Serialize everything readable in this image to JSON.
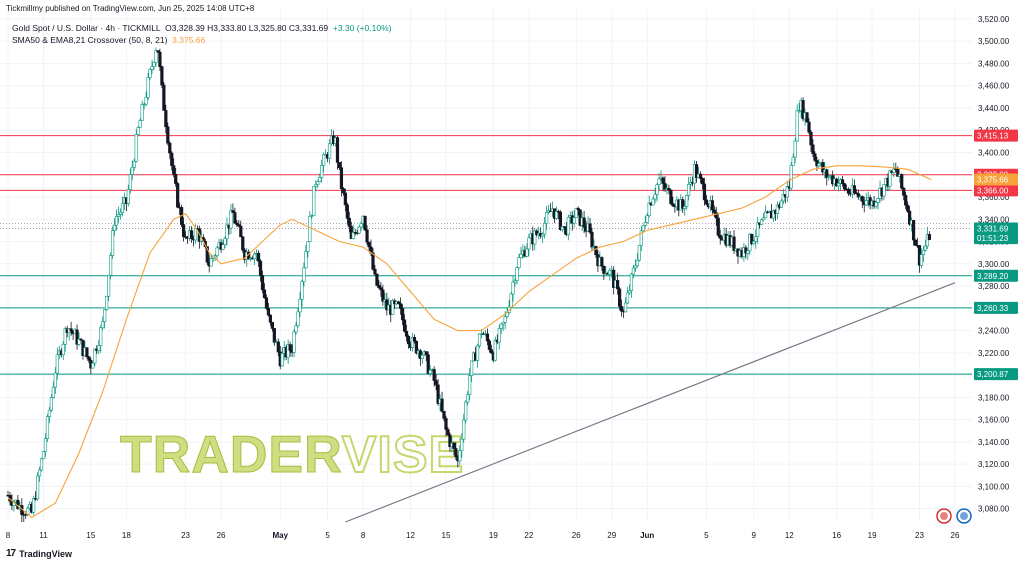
{
  "header": {
    "publisher": "Tickmillmy published on TradingView.com, Jun 25, 2025 14:08 UTC+8",
    "symbol": "Gold Spot / U.S. Dollar · 4h · TICKMILL",
    "ohlc": "O3,328.39  H3,333.80  L3,325.80  C3,331.69",
    "change": "+3.30 (+0.10%)",
    "indicator_name": "SMA50 & EMA8,21 Crossover (50, 8, 21)",
    "indicator_value": "3,375.66"
  },
  "footer": {
    "logo_text": "TradingView",
    "logo_icon": "tradingview-logo-icon"
  },
  "watermark": {
    "text_a": "TRADER",
    "text_b": "VISE"
  },
  "chart_data": {
    "type": "candlestick",
    "title": "Gold Spot / U.S. Dollar · 4h · TICKMILL",
    "y_axis": {
      "range": [
        3068,
        3528
      ],
      "ticks": [
        3080,
        3100,
        3120,
        3140,
        3160,
        3180,
        3200,
        3220,
        3240,
        3260,
        3280,
        3300,
        3320,
        3340,
        3360,
        3380,
        3400,
        3420,
        3440,
        3460,
        3480,
        3500,
        3520
      ],
      "tick_labels": [
        "3,080.00",
        "3,100.00",
        "3,120.00",
        "3,140.00",
        "3,160.00",
        "3,180.00",
        "3,200.00",
        "3,220.00",
        "3,240.00",
        "3,260.00",
        "3,280.00",
        "3,300.00",
        "3,320.00",
        "3,340.00",
        "3,360.00",
        "3,380.00",
        "3,400.00",
        "3,420.00",
        "3,440.00",
        "3,460.00",
        "3,480.00",
        "3,500.00",
        "3,520.00"
      ]
    },
    "x_axis": {
      "tick_labels": [
        "8",
        "11",
        "15",
        "18",
        "23",
        "26",
        "May",
        "5",
        "8",
        "12",
        "15",
        "19",
        "22",
        "26",
        "29",
        "Jun",
        "5",
        "9",
        "12",
        "16",
        "19",
        "23",
        "26"
      ],
      "tick_day_index": [
        0,
        3,
        7,
        10,
        15,
        18,
        23,
        27,
        30,
        34,
        37,
        41,
        44,
        48,
        51,
        54,
        59,
        63,
        66,
        70,
        73,
        77,
        80
      ]
    },
    "price_path": [
      [
        0,
        3092
      ],
      [
        1,
        3082
      ],
      [
        2,
        3076
      ],
      [
        3,
        3132
      ],
      [
        4,
        3205
      ],
      [
        5,
        3245
      ],
      [
        6,
        3230
      ],
      [
        7,
        3210
      ],
      [
        8,
        3245
      ],
      [
        9,
        3340
      ],
      [
        10,
        3355
      ],
      [
        11,
        3420
      ],
      [
        12,
        3470
      ],
      [
        12.6,
        3500
      ],
      [
        13,
        3455
      ],
      [
        14,
        3375
      ],
      [
        15,
        3320
      ],
      [
        16,
        3330
      ],
      [
        17,
        3300
      ],
      [
        18,
        3320
      ],
      [
        19,
        3345
      ],
      [
        20,
        3310
      ],
      [
        21,
        3310
      ],
      [
        22,
        3250
      ],
      [
        23,
        3215
      ],
      [
        24,
        3225
      ],
      [
        25,
        3300
      ],
      [
        26,
        3375
      ],
      [
        27,
        3400
      ],
      [
        27.6,
        3415
      ],
      [
        28,
        3380
      ],
      [
        29,
        3320
      ],
      [
        30,
        3345
      ],
      [
        31,
        3285
      ],
      [
        32,
        3260
      ],
      [
        33,
        3260
      ],
      [
        34,
        3230
      ],
      [
        35,
        3220
      ],
      [
        36,
        3195
      ],
      [
        37,
        3150
      ],
      [
        38,
        3122
      ],
      [
        39,
        3200
      ],
      [
        40,
        3240
      ],
      [
        41,
        3220
      ],
      [
        42,
        3250
      ],
      [
        43,
        3300
      ],
      [
        44,
        3320
      ],
      [
        45,
        3330
      ],
      [
        46,
        3350
      ],
      [
        47,
        3330
      ],
      [
        48,
        3345
      ],
      [
        49,
        3330
      ],
      [
        50,
        3300
      ],
      [
        51,
        3290
      ],
      [
        52,
        3255
      ],
      [
        53,
        3300
      ],
      [
        54,
        3350
      ],
      [
        55,
        3375
      ],
      [
        56,
        3360
      ],
      [
        57,
        3350
      ],
      [
        58,
        3385
      ],
      [
        59,
        3360
      ],
      [
        60,
        3330
      ],
      [
        61,
        3320
      ],
      [
        62,
        3310
      ],
      [
        63,
        3325
      ],
      [
        64,
        3340
      ],
      [
        65,
        3350
      ],
      [
        66,
        3370
      ],
      [
        66.8,
        3445
      ],
      [
        67.5,
        3430
      ],
      [
        68,
        3400
      ],
      [
        69,
        3380
      ],
      [
        70,
        3375
      ],
      [
        71,
        3365
      ],
      [
        72,
        3360
      ],
      [
        73,
        3355
      ],
      [
        74,
        3370
      ],
      [
        75,
        3385
      ],
      [
        76,
        3350
      ],
      [
        77,
        3305
      ],
      [
        77.6,
        3318
      ],
      [
        78,
        3331.69
      ]
    ],
    "sma50_path": [
      [
        0,
        3090
      ],
      [
        2,
        3072
      ],
      [
        4,
        3085
      ],
      [
        6,
        3130
      ],
      [
        8,
        3185
      ],
      [
        10,
        3250
      ],
      [
        12,
        3310
      ],
      [
        14,
        3340
      ],
      [
        15,
        3345
      ],
      [
        16,
        3330
      ],
      [
        17,
        3310
      ],
      [
        18,
        3300
      ],
      [
        20,
        3305
      ],
      [
        22,
        3325
      ],
      [
        23,
        3335
      ],
      [
        24,
        3340
      ],
      [
        26,
        3330
      ],
      [
        28,
        3320
      ],
      [
        30,
        3315
      ],
      [
        32,
        3300
      ],
      [
        34,
        3275
      ],
      [
        36,
        3250
      ],
      [
        38,
        3240
      ],
      [
        40,
        3240
      ],
      [
        42,
        3255
      ],
      [
        44,
        3275
      ],
      [
        46,
        3290
      ],
      [
        48,
        3305
      ],
      [
        50,
        3315
      ],
      [
        52,
        3320
      ],
      [
        54,
        3330
      ],
      [
        56,
        3335
      ],
      [
        58,
        3340
      ],
      [
        60,
        3345
      ],
      [
        62,
        3350
      ],
      [
        64,
        3360
      ],
      [
        66,
        3375
      ],
      [
        68,
        3385
      ],
      [
        70,
        3388
      ],
      [
        72,
        3388
      ],
      [
        74,
        3387
      ],
      [
        76,
        3385
      ],
      [
        78,
        3375.66
      ]
    ],
    "horizontal_levels": [
      {
        "value": 3415.13,
        "label": "3,415.13",
        "color": "#f23645"
      },
      {
        "value": 3380.0,
        "label": "3,380.00",
        "color": "#f23645"
      },
      {
        "value": 3366.0,
        "label": "3,366.00",
        "color": "#f23645"
      },
      {
        "value": 3289.2,
        "label": "3,289.20",
        "color": "#089981"
      },
      {
        "value": 3260.33,
        "label": "3,260.33",
        "color": "#089981"
      },
      {
        "value": 3200.87,
        "label": "3,200.87",
        "color": "#089981"
      }
    ],
    "price_tags": [
      {
        "value": 3375.66,
        "label": "3,375.66",
        "color": "#f7a33a"
      },
      {
        "value": 3331.69,
        "label": "3,331.69",
        "color": "#089981"
      },
      {
        "value": 3323.0,
        "label": "01:51:23",
        "color": "#089981"
      }
    ],
    "trendline": {
      "from": [
        28.5,
        3068
      ],
      "to": [
        80,
        3283
      ]
    },
    "colors": {
      "up": "#089981",
      "down": "#131722",
      "sma": "#f7a33a",
      "grid": "#f0f3fa",
      "trend": "#787b86"
    }
  }
}
